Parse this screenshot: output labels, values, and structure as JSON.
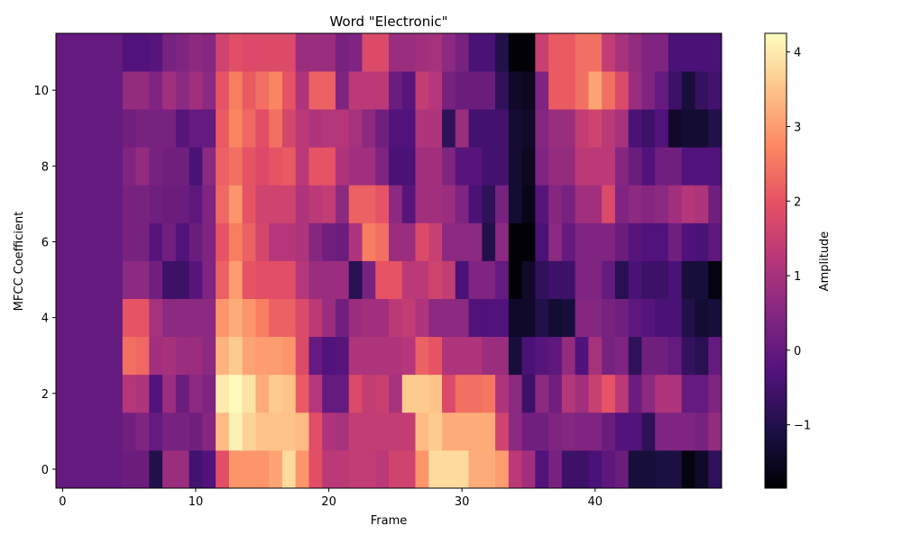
{
  "chart_data": {
    "type": "heatmap",
    "title": "Word \"Electronic\"",
    "xlabel": "Frame",
    "ylabel": "MFCC Coefficient",
    "colorbar_label": "Amplitude",
    "colormap": "magma",
    "x_range": [
      -0.5,
      49.5
    ],
    "y_range": [
      -0.5,
      11.5
    ],
    "x_ticks": [
      0,
      10,
      20,
      30,
      40
    ],
    "y_ticks": [
      0,
      2,
      4,
      6,
      8,
      10
    ],
    "x_tick_labels": [
      "0",
      "10",
      "20",
      "30",
      "40"
    ],
    "y_tick_labels": [
      "0",
      "2",
      "4",
      "6",
      "8",
      "10"
    ],
    "colorbar_range": [
      -1.85,
      4.25
    ],
    "colorbar_ticks": [
      -1,
      0,
      1,
      2,
      3,
      4
    ],
    "colorbar_tick_labels": [
      "−1",
      "0",
      "1",
      "2",
      "3",
      "4"
    ],
    "rows": [
      "0000001-.4.4-.8-.31.51.1.2.4.3.64.4.4.4.5.4.4.3.3.4.4.3.2.2.4.64.64.64.3.3.31.-.3-.6-1.1-1.1-1-.8-.5-.7-.3-1.4-1.4-1.3-1.3-1.7-1.3-.8",
      "0000000.-.0-.2-.1.4.1.1.3.4.14.2.4.4.4.34.21.4.4.1.5.3.5.8.4.4.4.7.7.7.7.6.4.-.-.-.-.2-.2-.3-.5-.-.9-.2-.1.-.2.1",
      ".2.2.3.3.3.3-.2.2.2.2.3.1.2.2-.2.6.3.1.2.1.9.6.3.0-.4.6.2.5.1.1.2.7.7.8.4.6-.6.0.4.6.1.2.5.3.1.7.6.1.8.3.1.2.7.6.7.2.0.2.4.2.1.3.2.1.4.2.4.1-.2.3.0-.0-.8-.6-.0-.1-.3",
      ".2.2.3.3.3.3-.2.2.2.2.3.2.8.1.2.1.0.0.2.8.3.4.2.8.3.6.3.3.9.3.3.2.6.2.7.2.3.2.4.3.3.4.5.6.3.-.4.4.4.4.4.3.7.3.7.3.7.3.9.4.1.2.1.3.2.1.6.7.7.4.4.4.-.-.2.3.7",
      ".2.2.3.3.3.3-.2.4.3.6.1.1.5.3.4.1.9.4.3.7.3.7.3.2.5.3.4.2.6.6.6.8.9.4.2.1.8.-.4.4.4.5.4.5.-.5.1.9.9.8.1.3.9.4.2-.1.1-.4.-.9.4.-.6.4.-1.4.5.5.6.2.6.-.8.8.-.6.-1",
      "0000000.7.7.3-.5-.5-.5-.3.22.3.8.8.8.8.8.6.6.6-.8.9.8.8.8.8.8.3.3.9.9.8.8.8-.5.5.4.4-.6-.2-.1-1.0-1.8-.8-.6-.6-.8-.4-.6-.6-.8-.2-.2",
      "00000.4.5.2.3.3-.3-.5.4-.1.9.9.9.1.9.9.8.8.8.8.4.4.8.1.8.1.9.1.9.9.9.9.8.5.5-.4.9.9.9.9-.4-.3-1.8-1.2.-.5.8.8.4.5.4.5.7.4.3.5.3.6.7.4.5",
      "00000.5.4.5.1.1.1-.2.4.4.6.8.6.6.6.5.8.4.4.8.6.6.6.4.7.4.3.8.8.3.7.3.8.9.3.4.9.9.9.1.2-.2.3.3-.6-.9-.3.9.3.1.1.5.4.7-.0.5.5.5.6.6-.3-.2.3-.8-.8",
      "00000.8.3.4.7.6.1.6.2.5.7.9.6.6.7.9.6.8.3.4.2.6.4.4.9.9.6.7-.3-.7-.6-.6-1-.5-.2.7.8.3.2.6.2.6.9.5.7.8.6.9.4-.3-.5-.4-.8-.3-.7-.2-.2",
      "00000.2.5.3.3.4.1-.1.9.9.6.8.6.8.8.8.7.7.6.9.5.6.5.3.2-.3.8.4.5.8-.3.8.3.2.3.-1.3-.2-.5-.8-.4.1.3.6.4.6.5.9.9.3.1.3-1.2-1.1-1.1-1.1-1.1-.9",
      "00000.7.8.8.8.9.5.7.7.9.8.2.8.9.8.4.4.8.8.9.7.7.8.4.4.3.2.3.7.5.4.4.1-.1-1.2-1.4-.6.8.1.2.9.6.9.6.4.4.7.3.3-.2-.9-.3-.4",
      "00000.-.1-.4.4.4.4.4.7.4.7.8.8.8.8.8.6.6.8.5.6.6.4.5.4.5.1.4.5.3.3.3.8.6.5.4.2-.9-.-1.7-1.7-.-1.6-.3.4.6.3.3.4.5.8.7.8-.4-.8-.7-.7-.2-.2"
    ],
    "values": [
      [
        0.0,
        0.0,
        0.0,
        0.0,
        0.0,
        0.1,
        0.1,
        -1.0,
        0.8,
        0.8,
        -0.5,
        -0.3,
        1.9,
        2.9,
        2.9,
        2.9,
        3.1,
        3.8,
        2.9,
        1.9,
        1.3,
        1.3,
        1.4,
        1.4,
        1.3,
        1.6,
        1.6,
        2.9,
        3.8,
        3.8,
        3.8,
        3.2,
        3.2,
        3.0,
        1.3,
        0.9,
        -0.3,
        0.3,
        -0.6,
        -0.6,
        -0.4,
        -0.1,
        0.1,
        -1.2,
        -1.2,
        -1.1,
        -1.1,
        -1.7,
        -1.4,
        -0.8
      ],
      [
        0.0,
        0.0,
        0.0,
        0.0,
        0.0,
        0.2,
        0.4,
        0.0,
        0.3,
        0.3,
        0.2,
        0.5,
        3.4,
        4.1,
        3.7,
        3.5,
        3.5,
        3.5,
        3.4,
        1.9,
        1.1,
        1.0,
        1.4,
        1.4,
        1.4,
        1.4,
        1.4,
        3.4,
        3.6,
        3.2,
        3.2,
        3.2,
        3.2,
        1.6,
        0.6,
        0.2,
        0.2,
        0.4,
        0.5,
        0.4,
        0.4,
        0.1,
        -0.3,
        -0.3,
        -0.8,
        0.4,
        0.4,
        0.4,
        0.3,
        0.7
      ],
      [
        0.0,
        0.0,
        0.0,
        0.0,
        0.0,
        1.2,
        1.1,
        -0.3,
        0.8,
        0.1,
        0.6,
        0.4,
        4.0,
        4.2,
        3.9,
        3.2,
        3.6,
        3.5,
        2.1,
        1.2,
        0.0,
        0.0,
        1.8,
        1.4,
        1.5,
        1.0,
        3.6,
        3.6,
        3.5,
        1.8,
        2.4,
        2.4,
        2.5,
        1.1,
        0.6,
        -0.6,
        0.6,
        0.2,
        1.2,
        0.9,
        1.5,
        2.0,
        1.3,
        0.1,
        0.6,
        1.1,
        1.1,
        0.0,
        0.0,
        0.4
      ],
      [
        0.0,
        0.0,
        0.0,
        0.0,
        0.0,
        2.4,
        2.3,
        0.9,
        1.0,
        0.8,
        0.8,
        0.6,
        3.3,
        3.6,
        3.1,
        3.0,
        3.0,
        2.9,
        1.8,
        0.0,
        -0.3,
        -0.2,
        1.1,
        1.1,
        1.1,
        1.1,
        1.2,
        2.2,
        2.0,
        1.1,
        1.1,
        1.1,
        0.8,
        0.8,
        -1.2,
        -0.4,
        -0.2,
        -0.1,
        0.7,
        -0.3,
        1.0,
        0.3,
        0.4,
        -0.8,
        0.2,
        0.2,
        0.0,
        -0.7,
        -0.9,
        0.0
      ],
      [
        0.0,
        0.0,
        0.0,
        0.0,
        0.0,
        2.0,
        2.0,
        1.0,
        0.6,
        0.6,
        0.6,
        0.6,
        2.9,
        3.2,
        2.9,
        2.6,
        2.2,
        2.2,
        1.8,
        1.3,
        0.8,
        0.2,
        0.8,
        0.9,
        0.9,
        1.3,
        1.4,
        1.1,
        0.6,
        0.6,
        0.6,
        -0.3,
        -0.3,
        -0.3,
        -1.4,
        -1.4,
        -1.0,
        -1.3,
        -1.2,
        0.5,
        0.5,
        0.3,
        0.2,
        -0.1,
        -0.2,
        -0.4,
        -0.4,
        -1.0,
        -1.3,
        -1.2
      ],
      [
        0.0,
        0.0,
        0.0,
        0.0,
        0.0,
        0.6,
        0.6,
        0.2,
        -0.6,
        -0.6,
        -0.2,
        0.4,
        2.2,
        3.0,
        2.0,
        1.9,
        1.9,
        1.9,
        1.2,
        0.8,
        0.8,
        0.8,
        -0.9,
        0.3,
        2.0,
        2.0,
        1.3,
        1.3,
        1.6,
        1.4,
        -0.4,
        0.4,
        0.4,
        0.0,
        -1.8,
        -1.4,
        -0.8,
        -0.6,
        -0.6,
        0.4,
        0.4,
        0.0,
        -0.9,
        -0.4,
        -0.6,
        -0.6,
        -0.4,
        -1.2,
        -1.2,
        -1.7
      ],
      [
        0.0,
        0.0,
        0.0,
        0.0,
        0.0,
        0.3,
        0.3,
        -0.2,
        0.2,
        -0.3,
        0.1,
        0.4,
        2.0,
        2.6,
        2.2,
        1.7,
        1.2,
        1.2,
        1.1,
        0.5,
        0.2,
        0.1,
        1.1,
        2.6,
        2.4,
        0.8,
        0.8,
        1.8,
        1.5,
        0.6,
        0.6,
        0.6,
        -1.0,
        0.6,
        -1.8,
        -1.8,
        -0.4,
        0.6,
        0.0,
        0.4,
        0.4,
        0.4,
        0.1,
        -0.2,
        -0.3,
        -0.3,
        0.2,
        -0.3,
        -0.4,
        -0.1
      ],
      [
        0.0,
        0.0,
        0.0,
        0.0,
        0.0,
        0.3,
        0.3,
        0.2,
        0.1,
        0.1,
        -0.1,
        0.4,
        2.3,
        2.9,
        2.0,
        1.6,
        1.6,
        1.6,
        1.1,
        1.3,
        1.4,
        0.6,
        2.2,
        2.2,
        2.0,
        0.6,
        -0.2,
        0.9,
        0.9,
        0.8,
        0.4,
        -0.4,
        -0.8,
        0.3,
        -1.3,
        -1.6,
        -0.2,
        0.5,
        0.3,
        0.9,
        0.9,
        1.8,
        0.4,
        0.6,
        0.5,
        0.6,
        0.9,
        1.2,
        1.1,
        0.2
      ],
      [
        0.0,
        0.0,
        0.0,
        0.0,
        0.0,
        0.4,
        0.7,
        0.3,
        0.2,
        0.2,
        -0.4,
        0.6,
        2.2,
        2.4,
        2.0,
        1.8,
        2.0,
        2.1,
        1.3,
        2.0,
        2.0,
        1.1,
        0.9,
        0.9,
        0.4,
        -0.4,
        -0.4,
        0.9,
        0.9,
        0.4,
        -0.2,
        -0.2,
        -0.5,
        -0.5,
        -1.3,
        -1.5,
        0.4,
        0.7,
        0.7,
        1.3,
        1.3,
        1.3,
        0.5,
        0.1,
        -0.3,
        0.2,
        0.2,
        -0.3,
        -0.3,
        -0.3
      ],
      [
        0.0,
        0.0,
        0.0,
        0.0,
        0.0,
        0.2,
        0.3,
        0.3,
        0.3,
        -0.2,
        0.0,
        0.0,
        2.1,
        2.7,
        2.3,
        1.9,
        2.4,
        1.7,
        1.3,
        1.1,
        1.2,
        1.2,
        1.0,
        0.6,
        0.2,
        -0.3,
        -0.3,
        1.1,
        1.1,
        -0.8,
        0.8,
        -0.5,
        -0.5,
        -0.5,
        -1.3,
        -1.4,
        0.5,
        0.8,
        0.8,
        1.4,
        1.6,
        1.3,
        1.0,
        -0.4,
        -0.6,
        -0.3,
        -1.4,
        -1.3,
        -1.3,
        -1.0
      ],
      [
        0.0,
        0.0,
        0.0,
        0.0,
        0.0,
        0.7,
        0.7,
        0.4,
        0.9,
        0.6,
        0.9,
        0.6,
        2.0,
        2.6,
        2.1,
        2.4,
        2.7,
        2.0,
        1.1,
        2.2,
        2.2,
        0.4,
        1.3,
        1.3,
        1.3,
        0.1,
        -0.2,
        1.4,
        1.2,
        0.3,
        0.1,
        0.1,
        0.1,
        -0.8,
        -1.4,
        -1.5,
        0.4,
        2.1,
        2.1,
        2.4,
        3.1,
        2.4,
        1.8,
        0.8,
        0.4,
        0.0,
        -0.6,
        -1.2,
        -0.7,
        -0.5
      ],
      [
        0.0,
        0.0,
        0.0,
        0.0,
        0.0,
        -0.3,
        -0.3,
        -0.2,
        0.3,
        0.4,
        0.6,
        0.5,
        1.6,
        1.9,
        1.8,
        1.8,
        1.8,
        1.8,
        0.8,
        0.8,
        0.8,
        0.3,
        0.4,
        1.8,
        1.8,
        0.8,
        0.8,
        0.9,
        1.0,
        0.6,
        0.3,
        -0.4,
        -0.4,
        -1.0,
        -1.8,
        -1.8,
        1.5,
        2.1,
        2.1,
        2.4,
        2.4,
        1.4,
        1.0,
        0.7,
        0.4,
        0.4,
        -0.4,
        -0.4,
        -0.4,
        -0.4
      ]
    ]
  }
}
